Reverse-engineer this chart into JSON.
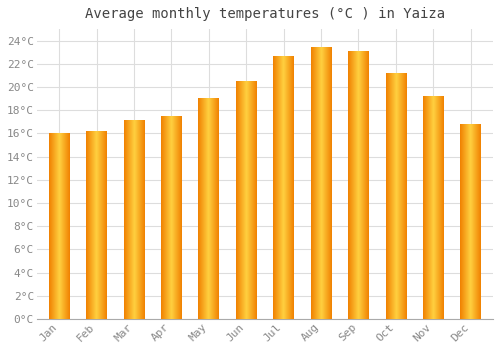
{
  "months": [
    "Jan",
    "Feb",
    "Mar",
    "Apr",
    "May",
    "Jun",
    "Jul",
    "Aug",
    "Sep",
    "Oct",
    "Nov",
    "Dec"
  ],
  "temperatures": [
    16.0,
    16.2,
    17.1,
    17.5,
    19.0,
    20.5,
    22.6,
    23.4,
    23.1,
    21.2,
    19.2,
    16.8
  ],
  "title": "Average monthly temperatures (°C ) in Yaiza",
  "ylim": [
    0,
    25
  ],
  "yticks": [
    0,
    2,
    4,
    6,
    8,
    10,
    12,
    14,
    16,
    18,
    20,
    22,
    24
  ],
  "background_color": "#FFFFFF",
  "grid_color": "#DDDDDD",
  "title_fontsize": 10,
  "tick_fontsize": 8,
  "title_color": "#444444",
  "tick_color": "#888888",
  "bar_color_center": "#FFD040",
  "bar_color_edge": "#F08000",
  "bar_width": 0.55
}
